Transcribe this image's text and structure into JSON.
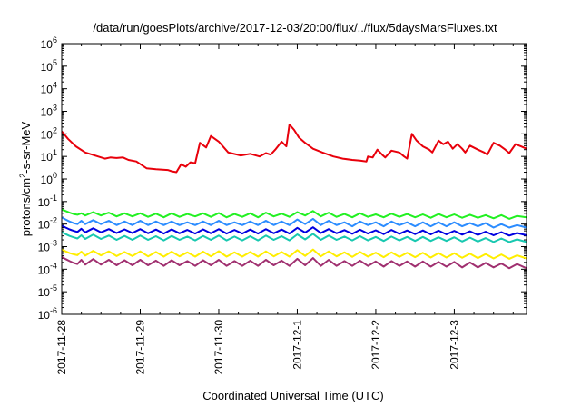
{
  "chart_data": {
    "type": "line",
    "title": "/data/run/goesPlots/archive/2017-12-03/20:00/flux/../flux/5daysMarsFluxes.txt",
    "xlabel": "Coordinated Universal Time (UTC)",
    "ylabel": {
      "base": "protons/cm",
      "sup": "2",
      "rest": "-s-sr-MeV"
    },
    "y_scale": "log",
    "ylim_exponents": [
      -6,
      6
    ],
    "y_ticks": [
      {
        "base": "10",
        "exp": "6"
      },
      {
        "base": "10",
        "exp": "5"
      },
      {
        "base": "10",
        "exp": "4"
      },
      {
        "base": "10",
        "exp": "3"
      },
      {
        "base": "10",
        "exp": "2"
      },
      {
        "base": "10",
        "exp": "1"
      },
      {
        "base": "10",
        "exp": "0"
      },
      {
        "base": "10",
        "exp": "-1"
      },
      {
        "base": "10",
        "exp": "-2"
      },
      {
        "base": "10",
        "exp": "-3"
      },
      {
        "base": "10",
        "exp": "-4"
      },
      {
        "base": "10",
        "exp": "-5"
      },
      {
        "base": "10",
        "exp": "-6"
      }
    ],
    "x_range_days": [
      0,
      5.92
    ],
    "x_ticks": [
      {
        "label": "2017-11-28",
        "day": 0
      },
      {
        "label": "2017-11-29",
        "day": 1
      },
      {
        "label": "2017-11-30",
        "day": 2
      },
      {
        "label": "2017-12-1",
        "day": 3
      },
      {
        "label": "2017-12-2",
        "day": 4
      },
      {
        "label": "2017-12-3",
        "day": 5
      }
    ],
    "grid": false,
    "series": [
      {
        "color": "#e8000b",
        "x": [
          0.0,
          0.08,
          0.18,
          0.3,
          0.42,
          0.55,
          0.62,
          0.7,
          0.78,
          0.85,
          0.95,
          1.08,
          1.2,
          1.35,
          1.4,
          1.46,
          1.52,
          1.58,
          1.64,
          1.7,
          1.76,
          1.84,
          1.9,
          2.0,
          2.12,
          2.28,
          2.4,
          2.52,
          2.6,
          2.66,
          2.72,
          2.8,
          2.86,
          2.9,
          2.96,
          3.02,
          3.1,
          3.2,
          3.32,
          3.46,
          3.58,
          3.7,
          3.8,
          3.88,
          3.9,
          3.96,
          4.02,
          4.08,
          4.12,
          4.2,
          4.3,
          4.36,
          4.4,
          4.46,
          4.52,
          4.6,
          4.68,
          4.72,
          4.8,
          4.86,
          4.92,
          4.98,
          5.04,
          5.1,
          5.14,
          5.2,
          5.3,
          5.38,
          5.42,
          5.5,
          5.58,
          5.65,
          5.7,
          5.78,
          5.85,
          5.92
        ],
        "values": [
          130,
          60,
          28,
          15,
          11,
          8,
          9,
          8.5,
          9,
          7,
          6,
          3,
          2.7,
          2.5,
          2.2,
          2.0,
          4.5,
          3.5,
          5.5,
          5,
          40,
          25,
          80,
          45,
          15,
          11,
          13,
          10,
          14,
          12,
          20,
          45,
          28,
          260,
          150,
          70,
          40,
          22,
          15,
          10,
          8,
          7,
          6.5,
          6,
          10,
          9,
          20,
          12,
          9,
          18,
          15,
          10,
          8,
          100,
          50,
          28,
          20,
          15,
          50,
          35,
          45,
          22,
          35,
          22,
          15,
          30,
          20,
          15,
          12,
          40,
          30,
          20,
          14,
          35,
          28,
          22
        ]
      },
      {
        "color": "#22f022",
        "x": [
          0.0,
          0.05,
          0.1,
          0.15,
          0.2,
          0.25,
          0.3,
          0.4,
          0.5,
          0.6,
          0.7,
          0.8,
          0.9,
          1.0,
          1.1,
          1.2,
          1.3,
          1.4,
          1.5,
          1.6,
          1.7,
          1.8,
          1.9,
          2.0,
          2.1,
          2.2,
          2.3,
          2.4,
          2.5,
          2.6,
          2.7,
          2.8,
          2.9,
          3.0,
          3.1,
          3.2,
          3.3,
          3.4,
          3.5,
          3.6,
          3.7,
          3.8,
          3.9,
          4.0,
          4.1,
          4.2,
          4.3,
          4.4,
          4.5,
          4.6,
          4.7,
          4.8,
          4.9,
          5.0,
          5.1,
          5.2,
          5.3,
          5.4,
          5.5,
          5.6,
          5.7,
          5.8,
          5.92
        ],
        "values": [
          0.045,
          0.038,
          0.032,
          0.028,
          0.026,
          0.03,
          0.024,
          0.034,
          0.024,
          0.032,
          0.022,
          0.03,
          0.022,
          0.03,
          0.021,
          0.029,
          0.02,
          0.03,
          0.021,
          0.028,
          0.022,
          0.03,
          0.021,
          0.031,
          0.02,
          0.028,
          0.021,
          0.03,
          0.02,
          0.032,
          0.022,
          0.029,
          0.021,
          0.034,
          0.024,
          0.038,
          0.022,
          0.032,
          0.021,
          0.028,
          0.02,
          0.03,
          0.021,
          0.027,
          0.02,
          0.029,
          0.021,
          0.028,
          0.02,
          0.027,
          0.019,
          0.028,
          0.02,
          0.027,
          0.019,
          0.026,
          0.019,
          0.025,
          0.018,
          0.025,
          0.017,
          0.023,
          0.02
        ]
      },
      {
        "color": "#2b8cff",
        "x": [
          0.0,
          0.05,
          0.1,
          0.15,
          0.2,
          0.25,
          0.3,
          0.4,
          0.5,
          0.6,
          0.7,
          0.8,
          0.9,
          1.0,
          1.1,
          1.2,
          1.3,
          1.4,
          1.5,
          1.6,
          1.7,
          1.8,
          1.9,
          2.0,
          2.1,
          2.2,
          2.3,
          2.4,
          2.5,
          2.6,
          2.7,
          2.8,
          2.9,
          3.0,
          3.1,
          3.2,
          3.3,
          3.4,
          3.5,
          3.6,
          3.7,
          3.8,
          3.9,
          4.0,
          4.1,
          4.2,
          4.3,
          4.4,
          4.5,
          4.6,
          4.7,
          4.8,
          4.9,
          5.0,
          5.1,
          5.2,
          5.3,
          5.4,
          5.5,
          5.6,
          5.7,
          5.8,
          5.92
        ],
        "values": [
          0.02,
          0.016,
          0.013,
          0.011,
          0.01,
          0.014,
          0.01,
          0.015,
          0.01,
          0.014,
          0.009,
          0.013,
          0.009,
          0.014,
          0.009,
          0.013,
          0.009,
          0.013,
          0.009,
          0.012,
          0.009,
          0.013,
          0.009,
          0.014,
          0.009,
          0.012,
          0.009,
          0.013,
          0.009,
          0.014,
          0.009,
          0.013,
          0.009,
          0.016,
          0.01,
          0.017,
          0.009,
          0.014,
          0.009,
          0.012,
          0.008,
          0.013,
          0.009,
          0.012,
          0.008,
          0.013,
          0.009,
          0.012,
          0.008,
          0.012,
          0.008,
          0.012,
          0.008,
          0.012,
          0.008,
          0.011,
          0.008,
          0.011,
          0.007,
          0.01,
          0.007,
          0.009,
          0.007
        ]
      },
      {
        "color": "#0000e0",
        "x": [
          0.0,
          0.05,
          0.1,
          0.15,
          0.2,
          0.25,
          0.3,
          0.4,
          0.5,
          0.6,
          0.7,
          0.8,
          0.9,
          1.0,
          1.1,
          1.2,
          1.3,
          1.4,
          1.5,
          1.6,
          1.7,
          1.8,
          1.9,
          2.0,
          2.1,
          2.2,
          2.3,
          2.4,
          2.5,
          2.6,
          2.7,
          2.8,
          2.9,
          3.0,
          3.1,
          3.2,
          3.3,
          3.4,
          3.5,
          3.6,
          3.7,
          3.8,
          3.9,
          4.0,
          4.1,
          4.2,
          4.3,
          4.4,
          4.5,
          4.6,
          4.7,
          4.8,
          4.9,
          5.0,
          5.1,
          5.2,
          5.3,
          5.4,
          5.5,
          5.6,
          5.7,
          5.8,
          5.92
        ],
        "values": [
          0.0085,
          0.007,
          0.0058,
          0.005,
          0.0045,
          0.0062,
          0.0043,
          0.0065,
          0.0043,
          0.006,
          0.004,
          0.0058,
          0.004,
          0.006,
          0.0039,
          0.0057,
          0.0038,
          0.0058,
          0.0039,
          0.0055,
          0.0038,
          0.0058,
          0.0039,
          0.006,
          0.0038,
          0.0055,
          0.0038,
          0.0057,
          0.0038,
          0.006,
          0.0039,
          0.0057,
          0.0038,
          0.0068,
          0.0042,
          0.0072,
          0.004,
          0.006,
          0.0039,
          0.0054,
          0.0037,
          0.0056,
          0.0038,
          0.0053,
          0.0036,
          0.0055,
          0.0037,
          0.0052,
          0.0036,
          0.0052,
          0.0035,
          0.0051,
          0.0035,
          0.005,
          0.0034,
          0.0048,
          0.0033,
          0.0046,
          0.0032,
          0.0044,
          0.0031,
          0.004,
          0.0032
        ]
      },
      {
        "color": "#18c8b0",
        "x": [
          0.0,
          0.05,
          0.1,
          0.15,
          0.2,
          0.25,
          0.3,
          0.4,
          0.5,
          0.6,
          0.7,
          0.8,
          0.9,
          1.0,
          1.1,
          1.2,
          1.3,
          1.4,
          1.5,
          1.6,
          1.7,
          1.8,
          1.9,
          2.0,
          2.1,
          2.2,
          2.3,
          2.4,
          2.5,
          2.6,
          2.7,
          2.8,
          2.9,
          3.0,
          3.1,
          3.2,
          3.3,
          3.4,
          3.5,
          3.6,
          3.7,
          3.8,
          3.9,
          4.0,
          4.1,
          4.2,
          4.3,
          4.4,
          4.5,
          4.6,
          4.7,
          4.8,
          4.9,
          5.0,
          5.1,
          5.2,
          5.3,
          5.4,
          5.5,
          5.6,
          5.7,
          5.8,
          5.92
        ],
        "values": [
          0.0045,
          0.0036,
          0.003,
          0.0026,
          0.0023,
          0.0032,
          0.0022,
          0.0034,
          0.0022,
          0.0031,
          0.002,
          0.003,
          0.002,
          0.0031,
          0.002,
          0.0029,
          0.0019,
          0.003,
          0.002,
          0.0028,
          0.0019,
          0.003,
          0.002,
          0.0031,
          0.0019,
          0.0028,
          0.0019,
          0.0029,
          0.0019,
          0.0031,
          0.002,
          0.0029,
          0.0019,
          0.0035,
          0.0021,
          0.0037,
          0.002,
          0.0031,
          0.002,
          0.0028,
          0.0019,
          0.0029,
          0.0019,
          0.0027,
          0.0018,
          0.0028,
          0.0019,
          0.0027,
          0.0018,
          0.0027,
          0.0018,
          0.0026,
          0.0018,
          0.0026,
          0.0017,
          0.0025,
          0.0017,
          0.0024,
          0.0016,
          0.0023,
          0.0016,
          0.0021,
          0.0016
        ]
      },
      {
        "color": "#ffee00",
        "x": [
          0.0,
          0.05,
          0.1,
          0.15,
          0.2,
          0.25,
          0.3,
          0.4,
          0.5,
          0.6,
          0.7,
          0.8,
          0.9,
          1.0,
          1.1,
          1.2,
          1.3,
          1.4,
          1.5,
          1.6,
          1.7,
          1.8,
          1.9,
          2.0,
          2.1,
          2.2,
          2.3,
          2.4,
          2.5,
          2.6,
          2.7,
          2.8,
          2.9,
          3.0,
          3.1,
          3.2,
          3.3,
          3.4,
          3.5,
          3.6,
          3.7,
          3.8,
          3.9,
          4.0,
          4.1,
          4.2,
          4.3,
          4.4,
          4.5,
          4.6,
          4.7,
          4.8,
          4.9,
          5.0,
          5.1,
          5.2,
          5.3,
          5.4,
          5.5,
          5.6,
          5.7,
          5.8,
          5.92
        ],
        "values": [
          0.00075,
          0.00062,
          0.00052,
          0.00046,
          0.00042,
          0.0006,
          0.0004,
          0.00065,
          0.00041,
          0.00062,
          0.00038,
          0.00058,
          0.00038,
          0.00062,
          0.00037,
          0.00058,
          0.00036,
          0.0006,
          0.00037,
          0.00056,
          0.00036,
          0.0006,
          0.00037,
          0.00063,
          0.00036,
          0.00056,
          0.00036,
          0.00058,
          0.00036,
          0.00062,
          0.00037,
          0.00058,
          0.00036,
          0.0007,
          0.00039,
          0.00075,
          0.00037,
          0.00062,
          0.00037,
          0.00056,
          0.00035,
          0.00058,
          0.00036,
          0.00054,
          0.00034,
          0.00056,
          0.00035,
          0.00053,
          0.00034,
          0.00053,
          0.00033,
          0.00052,
          0.00033,
          0.00051,
          0.00032,
          0.00049,
          0.00031,
          0.00047,
          0.0003,
          0.00045,
          0.00029,
          0.00041,
          0.0003
        ]
      },
      {
        "color": "#a03070",
        "x": [
          0.0,
          0.05,
          0.1,
          0.15,
          0.2,
          0.25,
          0.3,
          0.4,
          0.5,
          0.6,
          0.7,
          0.8,
          0.9,
          1.0,
          1.1,
          1.2,
          1.3,
          1.4,
          1.5,
          1.6,
          1.7,
          1.8,
          1.9,
          2.0,
          2.1,
          2.2,
          2.3,
          2.4,
          2.5,
          2.6,
          2.7,
          2.8,
          2.9,
          3.0,
          3.1,
          3.2,
          3.3,
          3.4,
          3.5,
          3.6,
          3.7,
          3.8,
          3.9,
          4.0,
          4.1,
          4.2,
          4.3,
          4.4,
          4.5,
          4.6,
          4.7,
          4.8,
          4.9,
          5.0,
          5.1,
          5.2,
          5.3,
          5.4,
          5.5,
          5.6,
          5.7,
          5.8,
          5.92
        ],
        "values": [
          0.00035,
          0.00028,
          0.00023,
          0.00019,
          0.00017,
          0.00026,
          0.00016,
          0.00028,
          0.00016,
          0.00026,
          0.00015,
          0.00025,
          0.00015,
          0.00026,
          0.00015,
          0.00024,
          0.00014,
          0.00025,
          0.00015,
          0.00023,
          0.00014,
          0.00025,
          0.00015,
          0.00026,
          0.00014,
          0.00023,
          0.00014,
          0.00024,
          0.00014,
          0.00026,
          0.00015,
          0.00024,
          0.00014,
          0.00029,
          0.00015,
          0.00031,
          0.00014,
          0.00026,
          0.00014,
          0.00023,
          0.00014,
          0.00024,
          0.00014,
          0.00022,
          0.00013,
          0.00023,
          0.00014,
          0.00022,
          0.00013,
          0.00022,
          0.00013,
          0.00021,
          0.00013,
          0.00021,
          0.00012,
          0.0002,
          0.00012,
          0.00019,
          0.00012,
          0.00018,
          0.00011,
          0.00017,
          0.00011
        ]
      }
    ]
  }
}
